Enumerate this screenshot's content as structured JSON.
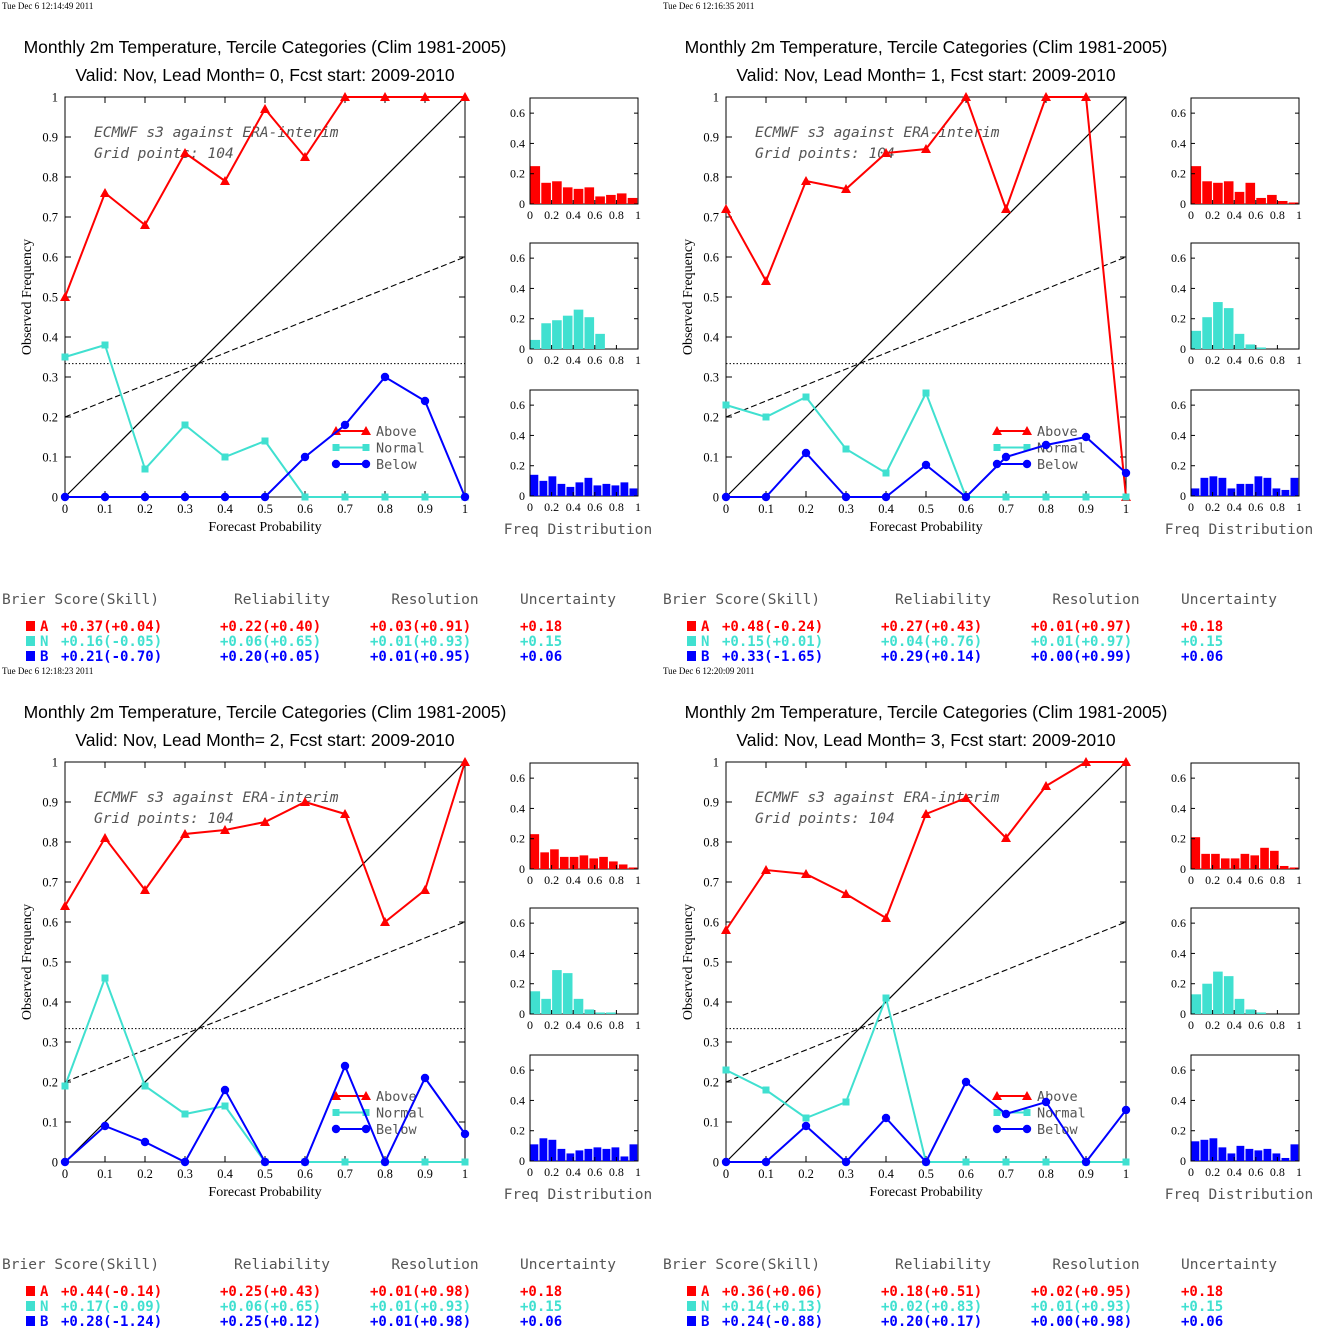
{
  "colors": {
    "above": "#ff0000",
    "normal": "#40e0d0",
    "below": "#0000ff",
    "axis": "#000000"
  },
  "legend_labels": [
    "Above",
    "Normal",
    "Below"
  ],
  "score_headers": [
    "Brier Score(Skill)",
    "Reliability",
    "Resolution",
    "Uncertainty"
  ],
  "chart_data": [
    {
      "type": "line",
      "timestamp": "Tue Dec  6 12:14:49 2011",
      "title": "Monthly 2m Temperature, Tercile Categories (Clim 1981-2005)",
      "subtitle": "Valid: Nov, Lead Month= 0, Fcst start: 2009-2010",
      "xlabel": "Forecast Probability",
      "ylabel": "Observed Frequency",
      "hist_xlabel": "Freq Distribution",
      "annotation": [
        "ECMWF s3 against ERA-interim",
        "Grid points:  104"
      ],
      "x": [
        0,
        0.1,
        0.2,
        0.3,
        0.4,
        0.5,
        0.6,
        0.7,
        0.8,
        0.9,
        1
      ],
      "xlim": [
        0,
        1
      ],
      "ylim": [
        0,
        1
      ],
      "series": [
        {
          "name": "Above",
          "values": [
            0.5,
            0.76,
            0.68,
            0.86,
            0.79,
            0.97,
            0.85,
            1,
            1,
            1,
            1
          ]
        },
        {
          "name": "Normal",
          "values": [
            0.35,
            0.38,
            0.07,
            0.18,
            0.1,
            0.14,
            0,
            0,
            0,
            0,
            0
          ]
        },
        {
          "name": "Below",
          "values": [
            0,
            0,
            0,
            0,
            0,
            0,
            0.1,
            0.18,
            0.3,
            0.24,
            0
          ]
        }
      ],
      "histograms": {
        "Above": [
          0.25,
          0.14,
          0.15,
          0.11,
          0.1,
          0.11,
          0.05,
          0.06,
          0.07,
          0.04
        ],
        "Normal": [
          0.06,
          0.17,
          0.19,
          0.22,
          0.26,
          0.21,
          0.1,
          0,
          0,
          0
        ],
        "Below": [
          0.14,
          0.1,
          0.13,
          0.08,
          0.06,
          0.09,
          0.12,
          0.07,
          0.08,
          0.07,
          0.09,
          0.05
        ]
      },
      "scores": [
        {
          "label": "A",
          "brier": "+0.37(+0.04)",
          "reliability": "+0.22(+0.40)",
          "resolution": "+0.03(+0.91)",
          "uncertainty": "+0.18"
        },
        {
          "label": "N",
          "brier": "+0.16(-0.05)",
          "reliability": "+0.06(+0.65)",
          "resolution": "+0.01(+0.93)",
          "uncertainty": "+0.15"
        },
        {
          "label": "B",
          "brier": "+0.21(-0.70)",
          "reliability": "+0.20(+0.05)",
          "resolution": "+0.01(+0.95)",
          "uncertainty": "+0.06"
        }
      ]
    },
    {
      "type": "line",
      "timestamp": "Tue Dec  6 12:16:35 2011",
      "title": "Monthly 2m Temperature, Tercile Categories (Clim 1981-2005)",
      "subtitle": "Valid: Nov, Lead Month= 1, Fcst start: 2009-2010",
      "xlabel": "Forecast Probability",
      "ylabel": "Observed Frequency",
      "hist_xlabel": "Freq Distribution",
      "annotation": [
        "ECMWF s3 against ERA-interim",
        "Grid points:  104"
      ],
      "x": [
        0,
        0.1,
        0.2,
        0.3,
        0.4,
        0.5,
        0.6,
        0.7,
        0.8,
        0.9,
        1
      ],
      "xlim": [
        0,
        1
      ],
      "ylim": [
        0,
        1
      ],
      "series": [
        {
          "name": "Above",
          "values": [
            0.72,
            0.54,
            0.79,
            0.77,
            0.86,
            0.87,
            1,
            0.72,
            1,
            1,
            0
          ]
        },
        {
          "name": "Normal",
          "values": [
            0.23,
            0.2,
            0.25,
            0.12,
            0.06,
            0.26,
            0,
            0,
            0,
            0,
            0
          ]
        },
        {
          "name": "Below",
          "values": [
            0,
            0,
            0.11,
            0,
            0,
            0.08,
            0,
            0.1,
            0.13,
            0.15,
            0.06
          ]
        }
      ],
      "histograms": {
        "Above": [
          0.25,
          0.15,
          0.14,
          0.15,
          0.08,
          0.14,
          0.04,
          0.06,
          0.02,
          0.01
        ],
        "Normal": [
          0.12,
          0.21,
          0.31,
          0.27,
          0.1,
          0.03,
          0.01,
          0,
          0,
          0
        ],
        "Below": [
          0.05,
          0.12,
          0.13,
          0.12,
          0.05,
          0.08,
          0.08,
          0.13,
          0.12,
          0.05,
          0.04,
          0.12
        ]
      },
      "scores": [
        {
          "label": "A",
          "brier": "+0.48(-0.24)",
          "reliability": "+0.27(+0.43)",
          "resolution": "+0.01(+0.97)",
          "uncertainty": "+0.18"
        },
        {
          "label": "N",
          "brier": "+0.15(+0.01)",
          "reliability": "+0.04(+0.76)",
          "resolution": "+0.01(+0.97)",
          "uncertainty": "+0.15"
        },
        {
          "label": "B",
          "brier": "+0.33(-1.65)",
          "reliability": "+0.29(+0.14)",
          "resolution": "+0.00(+0.99)",
          "uncertainty": "+0.06"
        }
      ]
    },
    {
      "type": "line",
      "timestamp": "Tue Dec  6 12:18:23 2011",
      "title": "Monthly 2m Temperature, Tercile Categories (Clim 1981-2005)",
      "subtitle": "Valid: Nov, Lead Month= 2, Fcst start: 2009-2010",
      "xlabel": "Forecast Probability",
      "ylabel": "Observed Frequency",
      "hist_xlabel": "Freq Distribution",
      "annotation": [
        "ECMWF s3 against ERA-interim",
        "Grid points:  104"
      ],
      "x": [
        0,
        0.1,
        0.2,
        0.3,
        0.4,
        0.5,
        0.6,
        0.7,
        0.8,
        0.9,
        1
      ],
      "xlim": [
        0,
        1
      ],
      "ylim": [
        0,
        1
      ],
      "series": [
        {
          "name": "Above",
          "values": [
            0.64,
            0.81,
            0.68,
            0.82,
            0.83,
            0.85,
            0.9,
            0.87,
            0.6,
            0.68,
            1
          ]
        },
        {
          "name": "Normal",
          "values": [
            0.19,
            0.46,
            0.19,
            0.12,
            0.14,
            0,
            0,
            0,
            0,
            0,
            0
          ]
        },
        {
          "name": "Below",
          "values": [
            0,
            0.09,
            0.05,
            0,
            0.18,
            0,
            0,
            0.24,
            0,
            0.21,
            0.07
          ]
        }
      ],
      "histograms": {
        "Above": [
          0.23,
          0.11,
          0.13,
          0.08,
          0.08,
          0.09,
          0.07,
          0.08,
          0.05,
          0.03,
          0.01
        ],
        "Normal": [
          0.15,
          0.1,
          0.29,
          0.27,
          0.1,
          0.03,
          0.01,
          0.01,
          0,
          0
        ],
        "Below": [
          0.11,
          0.15,
          0.14,
          0.08,
          0.05,
          0.07,
          0.08,
          0.09,
          0.08,
          0.09,
          0.03,
          0.11
        ]
      },
      "scores": [
        {
          "label": "A",
          "brier": "+0.44(-0.14)",
          "reliability": "+0.25(+0.43)",
          "resolution": "+0.01(+0.98)",
          "uncertainty": "+0.18"
        },
        {
          "label": "N",
          "brier": "+0.17(-0.09)",
          "reliability": "+0.06(+0.65)",
          "resolution": "+0.01(+0.93)",
          "uncertainty": "+0.15"
        },
        {
          "label": "B",
          "brier": "+0.28(-1.24)",
          "reliability": "+0.25(+0.12)",
          "resolution": "+0.01(+0.98)",
          "uncertainty": "+0.06"
        }
      ]
    },
    {
      "type": "line",
      "timestamp": "Tue Dec  6 12:20:09 2011",
      "title": "Monthly 2m Temperature, Tercile Categories (Clim 1981-2005)",
      "subtitle": "Valid: Nov, Lead Month= 3, Fcst start: 2009-2010",
      "xlabel": "Forecast Probability",
      "ylabel": "Observed Frequency",
      "hist_xlabel": "Freq Distribution",
      "annotation": [
        "ECMWF s3 against ERA-interim",
        "Grid points:  104"
      ],
      "x": [
        0,
        0.1,
        0.2,
        0.3,
        0.4,
        0.5,
        0.6,
        0.7,
        0.8,
        0.9,
        1
      ],
      "xlim": [
        0,
        1
      ],
      "ylim": [
        0,
        1
      ],
      "series": [
        {
          "name": "Above",
          "values": [
            0.58,
            0.73,
            0.72,
            0.67,
            0.61,
            0.87,
            0.91,
            0.81,
            0.94,
            1,
            1
          ]
        },
        {
          "name": "Normal",
          "values": [
            0.23,
            0.18,
            0.11,
            0.15,
            0.41,
            0,
            0,
            0,
            0,
            0,
            0
          ]
        },
        {
          "name": "Below",
          "values": [
            0,
            0,
            0.09,
            0,
            0.11,
            0,
            0.2,
            0.12,
            0.15,
            0,
            0.13
          ]
        }
      ],
      "histograms": {
        "Above": [
          0.21,
          0.1,
          0.1,
          0.07,
          0.07,
          0.1,
          0.09,
          0.14,
          0.12,
          0.02,
          0.01
        ],
        "Normal": [
          0.13,
          0.2,
          0.28,
          0.25,
          0.1,
          0.03,
          0.01,
          0,
          0,
          0
        ],
        "Below": [
          0.13,
          0.14,
          0.15,
          0.09,
          0.05,
          0.1,
          0.08,
          0.07,
          0.08,
          0.05,
          0.02,
          0.11
        ]
      },
      "scores": [
        {
          "label": "A",
          "brier": "+0.36(+0.06)",
          "reliability": "+0.18(+0.51)",
          "resolution": "+0.02(+0.95)",
          "uncertainty": "+0.18"
        },
        {
          "label": "N",
          "brier": "+0.14(+0.13)",
          "reliability": "+0.02(+0.83)",
          "resolution": "+0.01(+0.93)",
          "uncertainty": "+0.15"
        },
        {
          "label": "B",
          "brier": "+0.24(-0.88)",
          "reliability": "+0.20(+0.17)",
          "resolution": "+0.00(+0.98)",
          "uncertainty": "+0.06"
        }
      ]
    }
  ]
}
